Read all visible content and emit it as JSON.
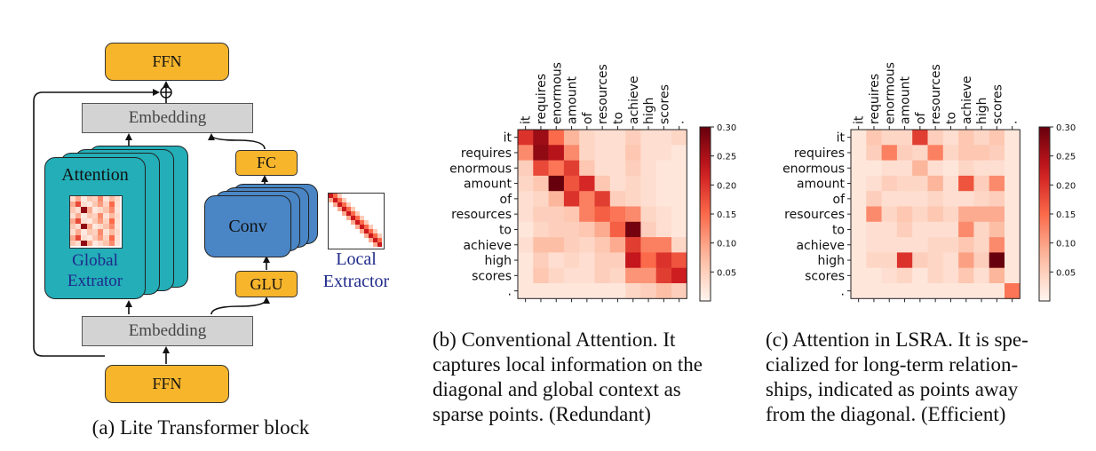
{
  "panel_a": {
    "ffn_top": "FFN",
    "embedding_top": "Embedding",
    "attention": "Attention",
    "global_extractor_1": "Global",
    "global_extractor_2": "Extrator",
    "fc": "FC",
    "conv": "Conv",
    "glu": "GLU",
    "local_extractor_1": "Local",
    "local_extractor_2": "Extractor",
    "embedding_bottom": "Embedding",
    "ffn_bottom": "FFN",
    "caption": "(a) Lite Transformer block",
    "colors": {
      "ffn": "#f7b52c",
      "attention": "#23aeb8",
      "conv": "#4a86c5",
      "embedding": "#d3d3d3",
      "label_blue": "#1f2a8a"
    }
  },
  "tokens": [
    "it",
    "requires",
    "enormous",
    "amount",
    "of",
    "resources",
    "to",
    "achieve",
    "high",
    "scores",
    "."
  ],
  "panel_b": {
    "caption_lines": [
      "(b) Conventional Attention. It",
      "captures local information on the",
      "diagonal and global context as",
      "sparse points. (Redundant)"
    ]
  },
  "panel_c": {
    "caption_lines": [
      "(c) Attention in LSRA. It is spe-",
      "cialized for long-term relation-",
      "ships, indicated as points away",
      "from the diagonal. (Efficient)"
    ]
  },
  "chart_data": [
    {
      "type": "heatmap",
      "title": "",
      "x": [
        "it",
        "requires",
        "enormous",
        "amount",
        "of",
        "resources",
        "to",
        "achieve",
        "high",
        "scores",
        "."
      ],
      "y": [
        "it",
        "requires",
        "enormous",
        "amount",
        "of",
        "resources",
        "to",
        "achieve",
        "high",
        "scores",
        "."
      ],
      "colorbar": {
        "range": [
          0,
          0.3
        ],
        "ticks": [
          "0.05",
          "0.10",
          "0.15",
          "0.20",
          "0.25",
          "0.30"
        ],
        "colormap": "Reds"
      },
      "values": [
        [
          0.2,
          0.26,
          0.15,
          0.08,
          0.04,
          0.03,
          0.03,
          0.05,
          0.03,
          0.03,
          0.04
        ],
        [
          0.12,
          0.27,
          0.24,
          0.12,
          0.04,
          0.03,
          0.03,
          0.06,
          0.03,
          0.03,
          0.02
        ],
        [
          0.05,
          0.18,
          0.14,
          0.19,
          0.06,
          0.03,
          0.03,
          0.05,
          0.03,
          0.02,
          0.02
        ],
        [
          0.04,
          0.06,
          0.3,
          0.17,
          0.21,
          0.06,
          0.03,
          0.04,
          0.03,
          0.02,
          0.02
        ],
        [
          0.03,
          0.04,
          0.08,
          0.2,
          0.13,
          0.19,
          0.05,
          0.04,
          0.03,
          0.02,
          0.02
        ],
        [
          0.03,
          0.05,
          0.05,
          0.06,
          0.13,
          0.16,
          0.14,
          0.12,
          0.04,
          0.03,
          0.02
        ],
        [
          0.02,
          0.04,
          0.05,
          0.05,
          0.06,
          0.09,
          0.16,
          0.29,
          0.05,
          0.03,
          0.02
        ],
        [
          0.03,
          0.07,
          0.07,
          0.05,
          0.04,
          0.06,
          0.09,
          0.19,
          0.13,
          0.13,
          0.04
        ],
        [
          0.02,
          0.05,
          0.03,
          0.04,
          0.03,
          0.05,
          0.05,
          0.23,
          0.15,
          0.2,
          0.17
        ],
        [
          0.02,
          0.06,
          0.04,
          0.03,
          0.03,
          0.05,
          0.04,
          0.11,
          0.11,
          0.19,
          0.22
        ],
        [
          0.02,
          0.02,
          0.02,
          0.02,
          0.02,
          0.02,
          0.02,
          0.04,
          0.05,
          0.07,
          0.05
        ]
      ]
    },
    {
      "type": "heatmap",
      "title": "",
      "x": [
        "it",
        "requires",
        "enormous",
        "amount",
        "of",
        "resources",
        "to",
        "achieve",
        "high",
        "scores",
        "."
      ],
      "y": [
        "it",
        "requires",
        "enormous",
        "amount",
        "of",
        "resources",
        "to",
        "achieve",
        "high",
        "scores",
        "."
      ],
      "colorbar": {
        "range": [
          0,
          0.3
        ],
        "ticks": [
          "0.05",
          "0.10",
          "0.15",
          "0.20",
          "0.25",
          "0.30"
        ],
        "colormap": "Reds"
      },
      "values": [
        [
          0.02,
          0.06,
          0.04,
          0.04,
          0.19,
          0.05,
          0.03,
          0.06,
          0.04,
          0.06,
          0.02
        ],
        [
          0.02,
          0.05,
          0.13,
          0.05,
          0.04,
          0.13,
          0.04,
          0.06,
          0.06,
          0.05,
          0.02
        ],
        [
          0.02,
          0.02,
          0.03,
          0.03,
          0.08,
          0.03,
          0.02,
          0.04,
          0.03,
          0.03,
          0.02
        ],
        [
          0.02,
          0.03,
          0.05,
          0.04,
          0.04,
          0.08,
          0.03,
          0.17,
          0.05,
          0.12,
          0.02
        ],
        [
          0.02,
          0.05,
          0.03,
          0.03,
          0.03,
          0.04,
          0.03,
          0.03,
          0.04,
          0.05,
          0.02
        ],
        [
          0.02,
          0.12,
          0.04,
          0.06,
          0.04,
          0.06,
          0.04,
          0.09,
          0.09,
          0.09,
          0.02
        ],
        [
          0.02,
          0.03,
          0.03,
          0.05,
          0.03,
          0.03,
          0.03,
          0.12,
          0.04,
          0.07,
          0.02
        ],
        [
          0.02,
          0.03,
          0.03,
          0.03,
          0.03,
          0.04,
          0.04,
          0.06,
          0.04,
          0.12,
          0.02
        ],
        [
          0.02,
          0.04,
          0.04,
          0.2,
          0.05,
          0.04,
          0.03,
          0.1,
          0.05,
          0.3,
          0.02
        ],
        [
          0.02,
          0.02,
          0.03,
          0.04,
          0.02,
          0.04,
          0.03,
          0.06,
          0.03,
          0.08,
          0.02
        ],
        [
          0.02,
          0.02,
          0.02,
          0.02,
          0.02,
          0.02,
          0.02,
          0.02,
          0.02,
          0.02,
          0.14
        ]
      ]
    }
  ]
}
